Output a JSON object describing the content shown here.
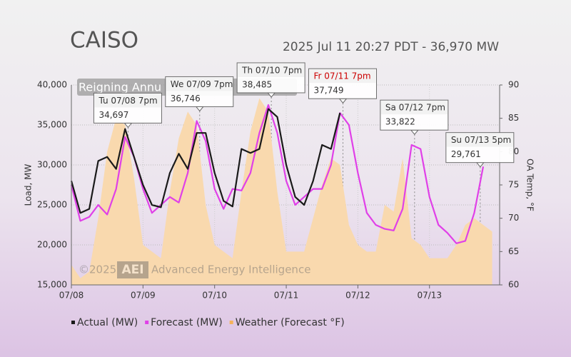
{
  "chart_data": {
    "type": "line",
    "title": "CAISO",
    "subtitle": "2025 Jul 11 20:27 PDT - 36,970 MW",
    "banner": "Reigning Annu",
    "watermark": [
      "©2025",
      "AEI",
      "Advanced Energy Intelligence"
    ],
    "ylabel": "Load, MW",
    "y2label": "OA Temp, °F",
    "x": [
      0,
      3,
      6,
      9,
      12,
      15,
      18,
      21,
      24,
      27,
      30,
      33,
      36,
      39,
      42,
      45,
      48,
      51,
      54,
      57,
      60,
      63,
      66,
      69,
      72,
      75,
      78,
      81,
      84,
      87,
      90,
      93,
      96,
      99,
      102,
      105,
      108,
      111,
      114,
      117,
      120,
      123,
      126,
      129,
      132,
      135,
      138,
      141
    ],
    "xlim": [
      0,
      143.5
    ],
    "xticks": [
      {
        "value": 0,
        "label": "07/08"
      },
      {
        "value": 24,
        "label": "07/09"
      },
      {
        "value": 48,
        "label": "07/10"
      },
      {
        "value": 72,
        "label": "07/11"
      },
      {
        "value": 96,
        "label": "07/12"
      },
      {
        "value": 120,
        "label": "07/13"
      }
    ],
    "ylim": [
      15000,
      40000
    ],
    "yticks": [
      {
        "value": 15000,
        "label": "15,000"
      },
      {
        "value": 20000,
        "label": "20,000"
      },
      {
        "value": 25000,
        "label": "25,000"
      },
      {
        "value": 30000,
        "label": "30,000"
      },
      {
        "value": 35000,
        "label": "35,000"
      },
      {
        "value": 40000,
        "label": "40,000"
      }
    ],
    "y2lim": [
      60,
      90
    ],
    "y2ticks": [
      60,
      65,
      70,
      75,
      80,
      85,
      90
    ],
    "grid": true,
    "series": [
      {
        "name": "Weather (Forecast °F)",
        "color": "#f9d9ae",
        "axis": "y2",
        "style": "area",
        "values": [
          63,
          61,
          62,
          70,
          80,
          85,
          84,
          76,
          66,
          65,
          64,
          74,
          82,
          86,
          84,
          72,
          66,
          65,
          64,
          74,
          83,
          88,
          86,
          74,
          65,
          65,
          65,
          70,
          75,
          79,
          78,
          69,
          66,
          65,
          65,
          72,
          71,
          79,
          67,
          66,
          64,
          64,
          64,
          66,
          69,
          70,
          69,
          68
        ]
      },
      {
        "name": "Forecast (MW)",
        "color": "#e040e8",
        "style": "line",
        "values": [
          27500,
          23000,
          23500,
          25000,
          23800,
          27000,
          33500,
          31000,
          27000,
          24000,
          25000,
          26000,
          25300,
          29000,
          35500,
          33000,
          27000,
          24500,
          27000,
          26800,
          29000,
          34000,
          37500,
          34000,
          28000,
          25000,
          26000,
          27000,
          27000,
          30000,
          36500,
          35000,
          29000,
          24000,
          22500,
          22000,
          21800,
          24500,
          32500,
          32000,
          26000,
          22500,
          21500,
          20200,
          20500,
          24000,
          29800,
          null
        ]
      },
      {
        "name": "Actual (MW)",
        "color": "#1a1a1a",
        "style": "line",
        "values": [
          28000,
          24000,
          24500,
          30500,
          31000,
          29500,
          34500,
          31000,
          27500,
          25000,
          24700,
          29000,
          31400,
          29500,
          34000,
          34000,
          29000,
          25500,
          24800,
          32000,
          31500,
          32000,
          37000,
          36000,
          30000,
          26000,
          25000,
          28000,
          32500,
          32000,
          36500,
          null,
          null,
          null,
          null,
          null,
          null,
          null,
          null,
          null,
          null,
          null,
          null,
          null,
          null,
          null,
          null,
          null
        ]
      }
    ],
    "annotations": [
      {
        "label": "Tu 07/08 7pm",
        "x": 19,
        "value": 34697,
        "value_label": "34,697"
      },
      {
        "label": "We 07/09 7pm",
        "x": 43,
        "value": 36746,
        "value_label": "36,746"
      },
      {
        "label": "Th 07/10 7pm",
        "x": 67,
        "value": 38485,
        "value_label": "38,485"
      },
      {
        "label": "Fr 07/11 7pm",
        "x": 91,
        "value": 37749,
        "value_label": "37,749",
        "color": "#cc0000"
      },
      {
        "label": "Sa 07/12 7pm",
        "x": 115,
        "value": 33822,
        "value_label": "33,822"
      },
      {
        "label": "Su 07/13 5pm",
        "x": 137,
        "value": 29761,
        "value_label": "29,761"
      }
    ]
  }
}
